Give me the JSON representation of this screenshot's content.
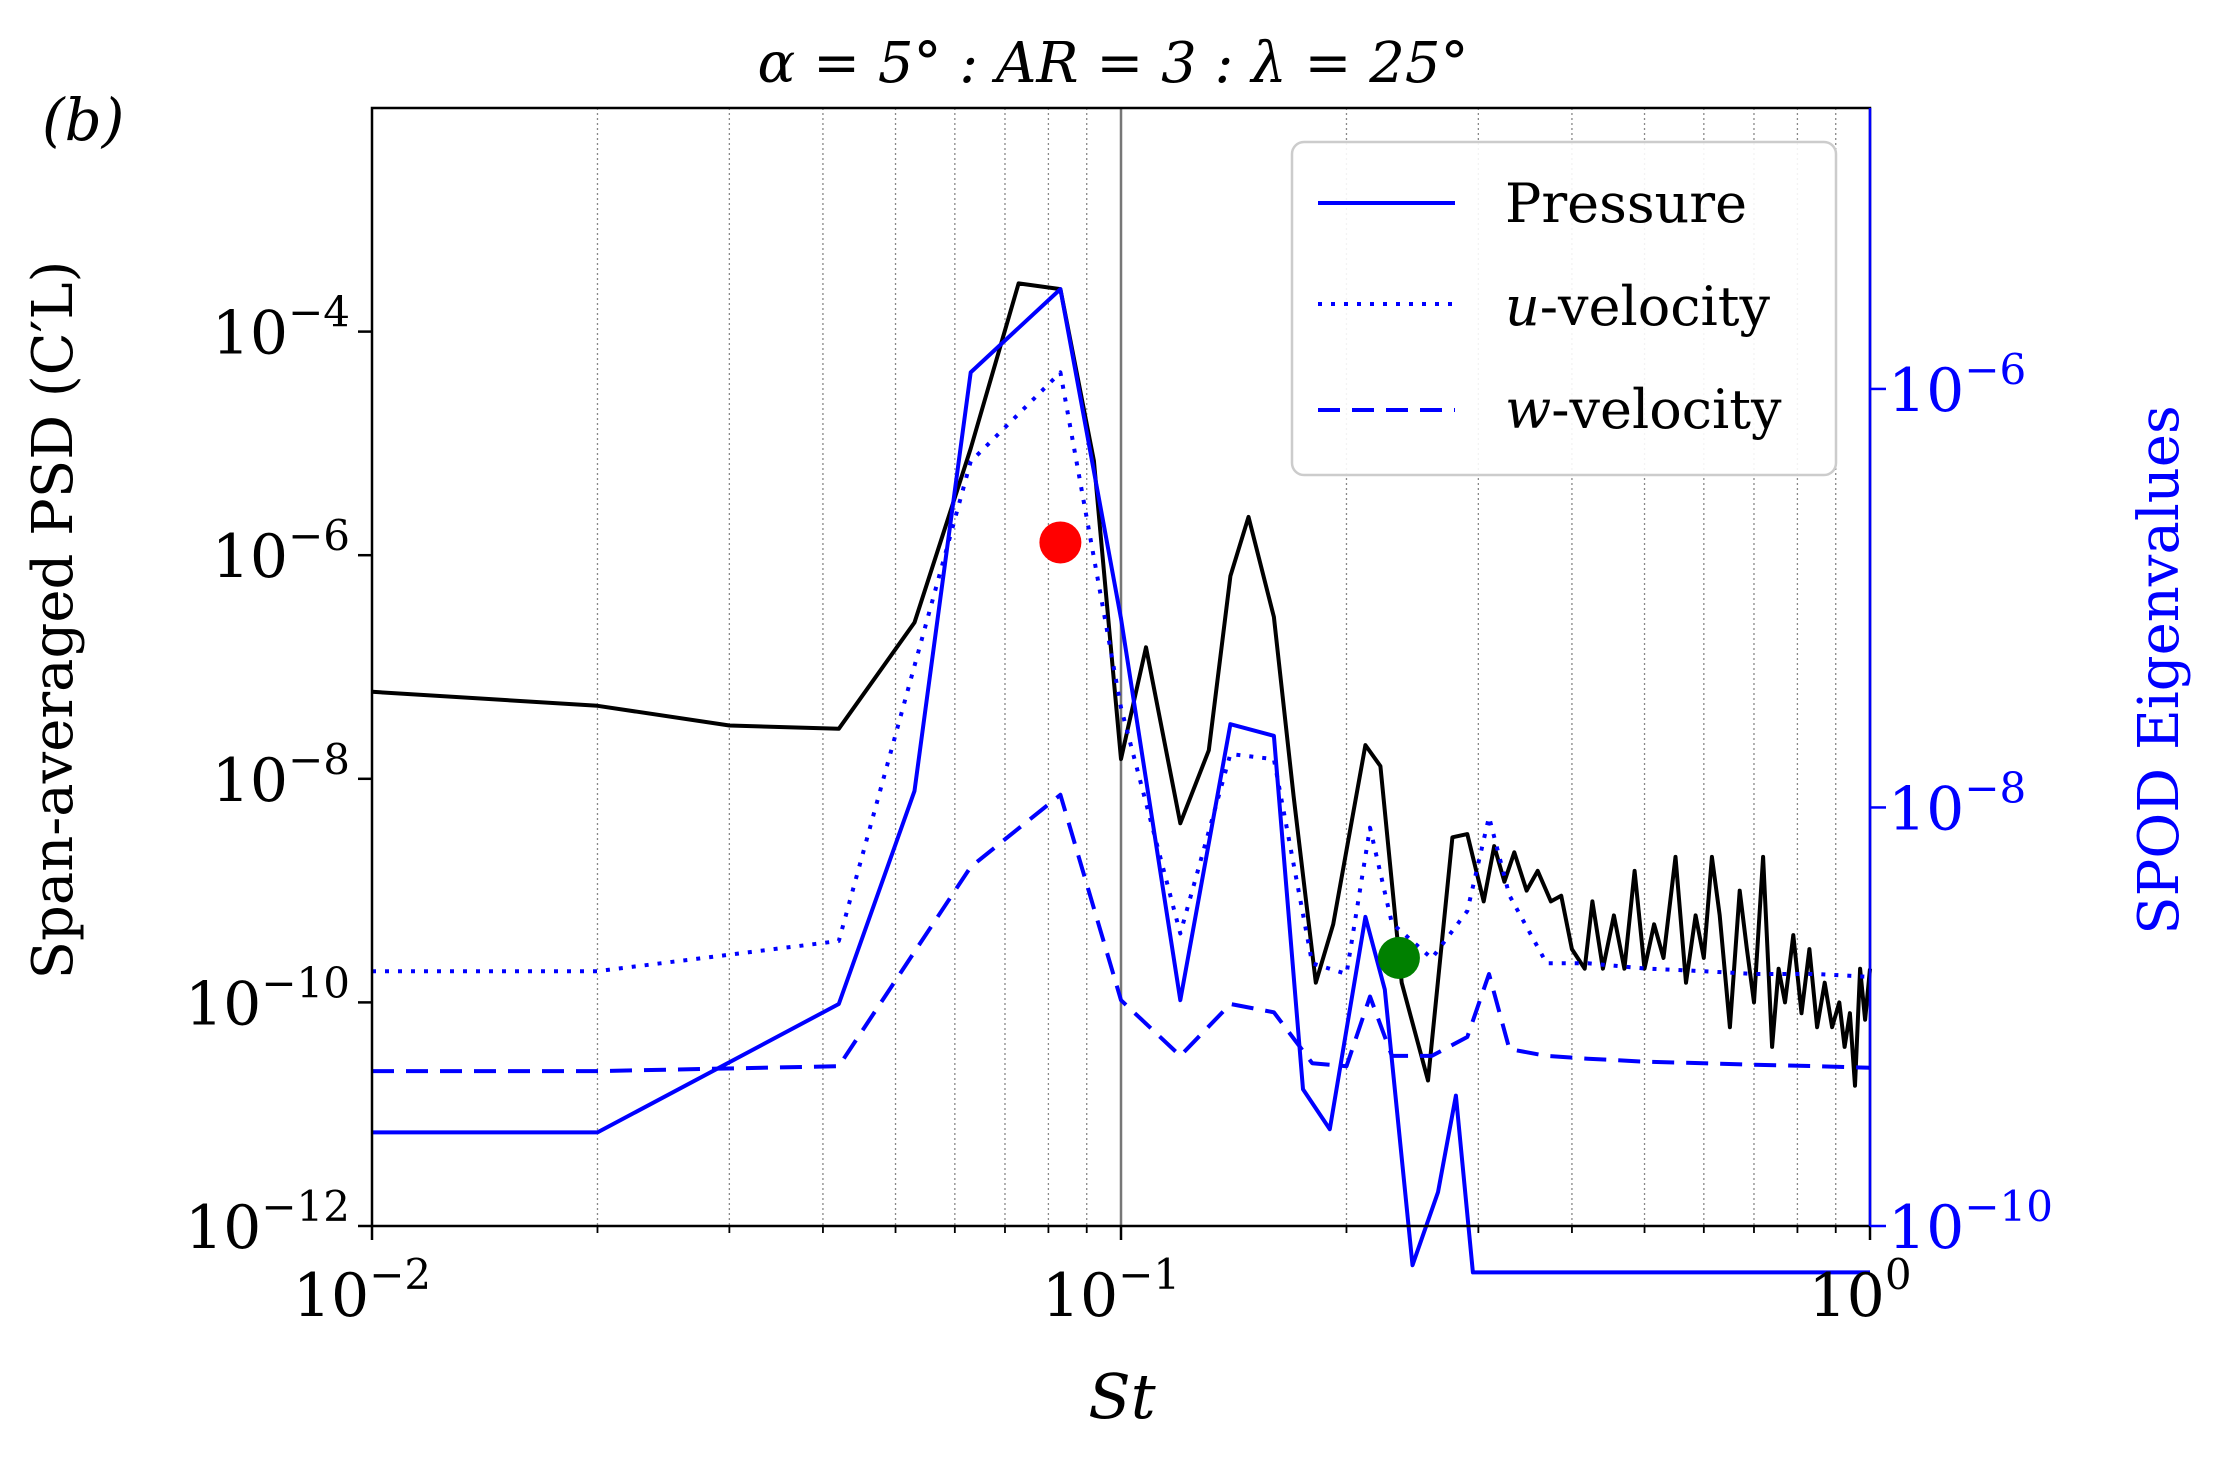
{
  "panel_label": "(b)",
  "colors": {
    "psd": "#000000",
    "spod": "#0000ff",
    "red_marker": "#ff0000",
    "green_marker": "#008000",
    "grid": "#888888"
  },
  "chart_data": {
    "type": "line",
    "title": "α = 5° : AR = 3 : λ = 25°",
    "xlabel": "St",
    "ylabel_left": "Span-averaged PSD (C′L)",
    "ylabel_right": "SPOD Eigenvalues",
    "xscale": "log",
    "xlim": [
      0.01,
      1
    ],
    "ylim_left": [
      1e-12,
      0.01
    ],
    "ylim_right": [
      1e-10,
      2.2e-05
    ],
    "x_ticks": [
      {
        "value": 0.01,
        "base": "10",
        "exp": "−2"
      },
      {
        "value": 0.1,
        "base": "10",
        "exp": "−1"
      },
      {
        "value": 1,
        "base": "10",
        "exp": "0"
      }
    ],
    "y_left_ticks": [
      {
        "value": 1e-12,
        "base": "10",
        "exp": "−12"
      },
      {
        "value": 1e-10,
        "base": "10",
        "exp": "−10"
      },
      {
        "value": 1e-08,
        "base": "10",
        "exp": "−8"
      },
      {
        "value": 1e-06,
        "base": "10",
        "exp": "−6"
      },
      {
        "value": 0.0001,
        "base": "10",
        "exp": "−4"
      }
    ],
    "y_right_ticks": [
      {
        "value": 1e-10,
        "base": "10",
        "exp": "−10"
      },
      {
        "value": 1e-08,
        "base": "10",
        "exp": "−8"
      },
      {
        "value": 1e-06,
        "base": "10",
        "exp": "−6"
      }
    ],
    "reference_line_x": 0.1,
    "legend": {
      "location": "upper right",
      "entries": [
        {
          "label_main": "Pressure",
          "label_prefix": "",
          "style": "solid"
        },
        {
          "label_main": "-velocity",
          "label_prefix": "u",
          "style": "dotted"
        },
        {
          "label_main": "-velocity",
          "label_prefix": "w",
          "style": "dashed"
        }
      ]
    },
    "series": [
      {
        "name": "Lift PSD",
        "axis": "left",
        "style": "solid",
        "color": "#000000",
        "x": [
          0.01,
          0.02,
          0.03,
          0.042,
          0.053,
          0.063,
          0.073,
          0.083,
          0.092,
          0.1,
          0.108,
          0.12,
          0.131,
          0.14,
          0.148,
          0.16,
          0.17,
          0.182,
          0.192,
          0.212,
          0.222,
          0.237,
          0.257,
          0.277,
          0.29,
          0.305,
          0.315,
          0.325,
          0.335,
          0.348,
          0.36,
          0.375,
          0.387,
          0.4,
          0.416,
          0.426,
          0.44,
          0.455,
          0.47,
          0.485,
          0.5,
          0.515,
          0.53,
          0.55,
          0.568,
          0.585,
          0.6,
          0.615,
          0.63,
          0.65,
          0.67,
          0.685,
          0.7,
          0.72,
          0.74,
          0.755,
          0.77,
          0.79,
          0.81,
          0.83,
          0.85,
          0.87,
          0.89,
          0.91,
          0.925,
          0.94,
          0.955,
          0.97,
          0.985,
          1.0
        ],
        "y": [
          6e-08,
          4.5e-08,
          3e-08,
          2.8e-08,
          2.5e-07,
          9e-06,
          0.00027,
          0.00024,
          7e-06,
          1.5e-08,
          1.5e-07,
          4e-09,
          1.8e-08,
          6.5e-07,
          2.2e-06,
          2.8e-07,
          7e-09,
          1.5e-10,
          5e-10,
          2e-08,
          1.3e-08,
          1.5e-10,
          2e-11,
          3e-09,
          3.2e-09,
          8e-10,
          2.5e-09,
          1.2e-09,
          2.2e-09,
          1e-09,
          1.5e-09,
          8e-10,
          9e-10,
          3e-10,
          2e-10,
          8e-10,
          2e-10,
          6e-10,
          2e-10,
          1.5e-09,
          2e-10,
          5e-10,
          2.5e-10,
          2e-09,
          1.5e-10,
          6e-10,
          2.5e-10,
          2e-09,
          6e-10,
          6e-11,
          1e-09,
          3e-10,
          1e-10,
          2e-09,
          4e-11,
          2e-10,
          1e-10,
          4e-10,
          8e-11,
          3e-10,
          6e-11,
          1.5e-10,
          6e-11,
          1e-10,
          4e-11,
          8e-11,
          1.8e-11,
          2e-10,
          7e-11,
          2e-10
        ]
      },
      {
        "name": "Pressure",
        "axis": "right",
        "style": "solid",
        "color": "#0000ff",
        "x": [
          0.01,
          0.02,
          0.042,
          0.053,
          0.063,
          0.083,
          0.1,
          0.12,
          0.14,
          0.16,
          0.175,
          0.19,
          0.212,
          0.225,
          0.245,
          0.265,
          0.28,
          0.295,
          0.31,
          0.325,
          0.345,
          0.37,
          0.4,
          0.43,
          0.47,
          0.5,
          0.55,
          0.59,
          0.61,
          0.65,
          0.7,
          0.74,
          0.78,
          0.83,
          0.87,
          0.9,
          0.92,
          0.95,
          0.98,
          1.0
        ],
        "y": [
          2.8e-10,
          2.8e-10,
          1.15e-09,
          1.2e-08,
          1.2e-06,
          3e-06,
          8e-08,
          1.2e-09,
          2.5e-08,
          2.2e-08,
          4.5e-10,
          2.9e-10,
          3e-09,
          1.35e-09,
          6.5e-11,
          1.45e-10,
          4.2e-10,
          6e-11,
          6e-11,
          6e-11,
          6e-11,
          6e-11,
          6e-11,
          6e-11,
          6e-11,
          6e-11,
          6e-11,
          6e-11,
          6e-11,
          6e-11,
          6e-11,
          6e-11,
          6e-11,
          6e-11,
          6e-11,
          6e-11,
          6e-11,
          6e-11,
          6e-11,
          6e-11
        ]
      },
      {
        "name": "u-velocity",
        "axis": "right",
        "style": "dotted",
        "color": "#0000ff",
        "x": [
          0.01,
          0.02,
          0.042,
          0.063,
          0.083,
          0.1,
          0.12,
          0.14,
          0.16,
          0.18,
          0.2,
          0.215,
          0.23,
          0.26,
          0.29,
          0.31,
          0.33,
          0.37,
          0.42,
          0.5,
          0.6,
          0.7,
          0.85,
          1.0
        ],
        "y": [
          1.65e-09,
          1.65e-09,
          2.3e-09,
          4.5e-07,
          1.2e-06,
          3e-08,
          2.5e-09,
          1.8e-08,
          1.7e-08,
          1.8e-09,
          1.6e-09,
          8e-09,
          2.8e-09,
          1.9e-09,
          3.2e-09,
          9e-09,
          3.8e-09,
          1.8e-09,
          1.8e-09,
          1.7e-09,
          1.65e-09,
          1.6e-09,
          1.6e-09,
          1.55e-09
        ]
      },
      {
        "name": "w-velocity",
        "axis": "right",
        "style": "dashed",
        "color": "#0000ff",
        "x": [
          0.01,
          0.02,
          0.042,
          0.063,
          0.083,
          0.1,
          0.12,
          0.14,
          0.16,
          0.18,
          0.2,
          0.215,
          0.23,
          0.26,
          0.29,
          0.31,
          0.33,
          0.37,
          0.42,
          0.5,
          0.6,
          0.7,
          0.85,
          1.0
        ],
        "y": [
          5.5e-10,
          5.5e-10,
          5.8e-10,
          5.2e-09,
          1.15e-08,
          1.2e-09,
          6.5e-10,
          1.15e-09,
          1.05e-09,
          6e-10,
          5.8e-10,
          1.25e-09,
          6.5e-10,
          6.5e-10,
          8e-10,
          1.6e-09,
          7e-10,
          6.5e-10,
          6.3e-10,
          6.1e-10,
          6e-10,
          5.9e-10,
          5.8e-10,
          5.7e-10
        ]
      }
    ],
    "markers": [
      {
        "name": "red-marker",
        "x": 0.083,
        "y": 1.3e-06,
        "axis": "left",
        "color": "#ff0000"
      },
      {
        "name": "green-marker",
        "x": 0.235,
        "y": 2.5e-10,
        "axis": "left",
        "color": "#008000"
      }
    ]
  }
}
